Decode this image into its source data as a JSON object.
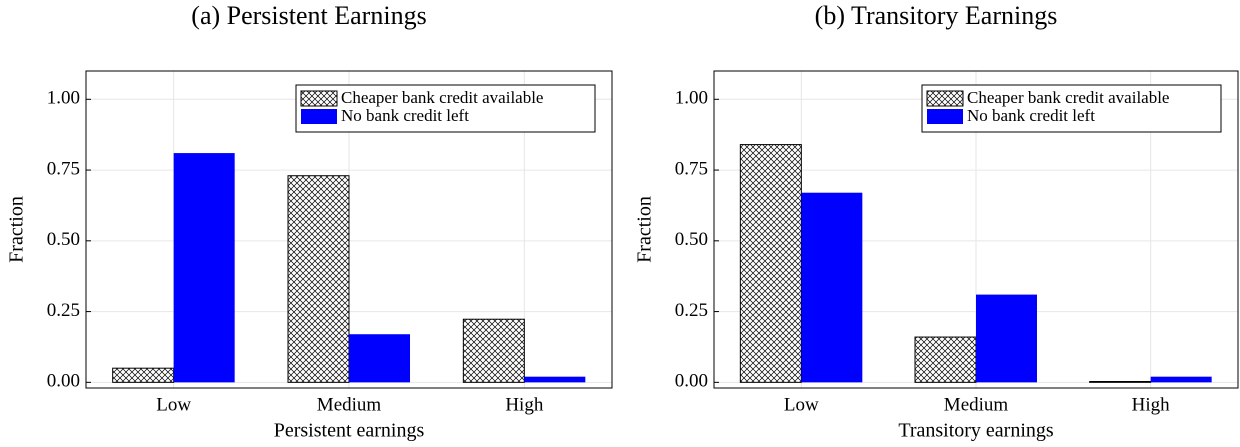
{
  "chart_data": [
    {
      "type": "bar",
      "title": "(a) Persistent Earnings",
      "xlabel": "Persistent earnings",
      "ylabel": "Fraction",
      "categories": [
        "Low",
        "Medium",
        "High"
      ],
      "series": [
        {
          "name": "Cheaper bank credit available",
          "color": "#000000",
          "hatch": "crosshatch",
          "values": [
            0.05,
            0.73,
            0.223
          ]
        },
        {
          "name": "No bank credit left",
          "color": "#0000ff",
          "values": [
            0.81,
            0.17,
            0.02
          ]
        }
      ],
      "ylim": [
        -0.02,
        1.1
      ],
      "yticks": [
        {
          "value": 0,
          "label": "0.00"
        },
        {
          "value": 0.25,
          "label": "0.25"
        },
        {
          "value": 0.5,
          "label": "0.50"
        },
        {
          "value": 0.75,
          "label": "0.75"
        },
        {
          "value": 1,
          "label": "1.00"
        }
      ],
      "grid": true,
      "legend": "top-right"
    },
    {
      "type": "bar",
      "title": "(b) Transitory Earnings",
      "xlabel": "Transitory earnings",
      "ylabel": "Fraction",
      "categories": [
        "Low",
        "Medium",
        "High"
      ],
      "series": [
        {
          "name": "Cheaper bank credit available",
          "color": "#000000",
          "hatch": "crosshatch",
          "values": [
            0.84,
            0.16,
            0.003
          ]
        },
        {
          "name": "No bank credit left",
          "color": "#0000ff",
          "values": [
            0.67,
            0.31,
            0.02
          ]
        }
      ],
      "ylim": [
        -0.02,
        1.1
      ],
      "yticks": [
        {
          "value": 0,
          "label": "0.00"
        },
        {
          "value": 0.25,
          "label": "0.25"
        },
        {
          "value": 0.5,
          "label": "0.50"
        },
        {
          "value": 0.75,
          "label": "0.75"
        },
        {
          "value": 1,
          "label": "1.00"
        }
      ],
      "grid": true,
      "legend": "top-right"
    }
  ]
}
